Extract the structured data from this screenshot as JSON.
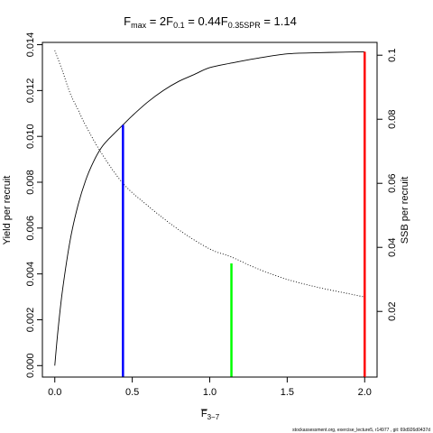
{
  "chart_data": {
    "type": "line",
    "title": {
      "items": [
        {
          "base": "F",
          "sub": "max",
          "value": " = 2"
        },
        {
          "base": "F",
          "sub": "0.1",
          "value": " = 0.44"
        },
        {
          "base": "F",
          "sub": "0.35SPR",
          "value": " = 1.14"
        }
      ]
    },
    "xlabel": {
      "base": "F",
      "sub": "3−7",
      "overline": true
    },
    "ylabel_left": "Yield per recruit",
    "ylabel_right": "SSB per recruit",
    "xlim": [
      -0.08,
      2.08
    ],
    "ylim_left": [
      -0.0005,
      0.0141
    ],
    "ylim_right": [
      -0.0005,
      0.104
    ],
    "x_ticks": [
      {
        "value": 0.0,
        "label": "0.0"
      },
      {
        "value": 0.5,
        "label": "0.5"
      },
      {
        "value": 1.0,
        "label": "1.0"
      },
      {
        "value": 1.5,
        "label": "1.5"
      },
      {
        "value": 2.0,
        "label": "2.0"
      }
    ],
    "y_left_ticks": [
      {
        "value": 0.0,
        "label": "0.000"
      },
      {
        "value": 0.002,
        "label": "0.002"
      },
      {
        "value": 0.004,
        "label": "0.004"
      },
      {
        "value": 0.006,
        "label": "0.006"
      },
      {
        "value": 0.008,
        "label": "0.008"
      },
      {
        "value": 0.01,
        "label": "0.010"
      },
      {
        "value": 0.012,
        "label": "0.012"
      },
      {
        "value": 0.014,
        "label": "0.014"
      }
    ],
    "y_right_ticks": [
      {
        "value": 0.02,
        "label": "0.02"
      },
      {
        "value": 0.04,
        "label": "0.04"
      },
      {
        "value": 0.06,
        "label": "0.06"
      },
      {
        "value": 0.08,
        "label": "0.08"
      },
      {
        "value": 0.1,
        "label": "0.1"
      }
    ],
    "series": [
      {
        "axis": "left",
        "style": "solid",
        "color": "#000000",
        "x": [
          0.0,
          0.02,
          0.05,
          0.1,
          0.15,
          0.2,
          0.25,
          0.3,
          0.35,
          0.44,
          0.5,
          0.6,
          0.7,
          0.8,
          0.9,
          1.0,
          1.14,
          1.3,
          1.5,
          1.7,
          1.9,
          2.0
        ],
        "y": [
          0.0,
          0.0015,
          0.0033,
          0.0055,
          0.007,
          0.0081,
          0.0089,
          0.0095,
          0.0099,
          0.0105,
          0.0109,
          0.0115,
          0.012,
          0.0124,
          0.0127,
          0.013,
          0.0132,
          0.0134,
          0.0136,
          0.01365,
          0.01368,
          0.01369
        ]
      },
      {
        "axis": "right",
        "style": "dotted",
        "color": "#000000",
        "x": [
          0.0,
          0.05,
          0.1,
          0.15,
          0.2,
          0.3,
          0.44,
          0.6,
          0.8,
          1.0,
          1.14,
          1.3,
          1.5,
          1.7,
          1.9,
          2.0
        ],
        "y": [
          0.1015,
          0.095,
          0.088,
          0.083,
          0.078,
          0.0695,
          0.06,
          0.053,
          0.0455,
          0.0395,
          0.037,
          0.0335,
          0.03,
          0.0275,
          0.0255,
          0.0245
        ]
      }
    ],
    "reference_lines": [
      {
        "x": 0.44,
        "axis": "left",
        "y": 0.0105,
        "color": "#0000ff"
      },
      {
        "x": 1.14,
        "axis": "right",
        "y": 0.035,
        "color": "#00ff00"
      },
      {
        "x": 2.0,
        "axis": "left",
        "y": 0.01369,
        "color": "#ff0000"
      }
    ],
    "grid": false
  },
  "footer": "stockassessment.org, exercise_lecture5, r14977 , git: 69d926d0437d"
}
